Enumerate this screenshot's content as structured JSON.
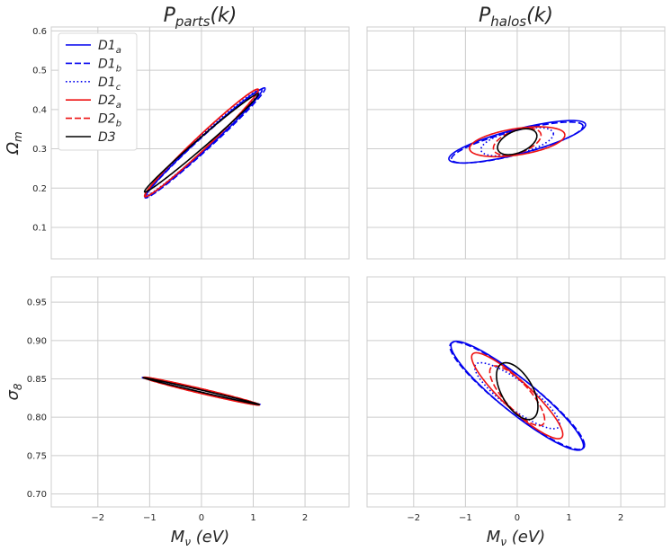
{
  "colors": {
    "D1": "#0000ee",
    "D2": "#ee1111",
    "D3": "#000000",
    "grid": "#cccccc"
  },
  "chart_data": [
    {
      "type": "scatter",
      "subtype": "confidence-ellipses",
      "panel": "top-left",
      "title": "Pparts(k)",
      "title_main": "P",
      "title_sub": "parts",
      "title_suffix": "(k)",
      "xlabel": "",
      "ylabel": "Ωm",
      "xlim": [
        -2.9,
        2.85
      ],
      "ylim": [
        0.02,
        0.61
      ],
      "xticks": [],
      "xticklabels": [],
      "yticks": [
        0.1,
        0.2,
        0.3,
        0.4,
        0.5,
        0.6
      ],
      "yticklabels": [
        "0.1",
        "0.2",
        "0.3",
        "0.4",
        "0.5",
        "0.6"
      ],
      "xgrid": [
        -2,
        -1,
        0,
        1,
        2
      ],
      "legend": {
        "position": "top-left",
        "entries": [
          {
            "label": "D1",
            "sub": "a",
            "color": "#0000ee",
            "dash": "solid"
          },
          {
            "label": "D1",
            "sub": "b",
            "color": "#0000ee",
            "dash": "dashed"
          },
          {
            "label": "D1",
            "sub": "c",
            "color": "#0000ee",
            "dash": "dotted"
          },
          {
            "label": "D2",
            "sub": "a",
            "color": "#ee1111",
            "dash": "solid"
          },
          {
            "label": "D2",
            "sub": "b",
            "color": "#ee1111",
            "dash": "dashed"
          },
          {
            "label": "D3",
            "sub": "",
            "color": "#000000",
            "dash": "solid"
          }
        ]
      },
      "series": [
        {
          "name": "D1a",
          "color": "#0000ee",
          "dash": "solid",
          "center": [
            0.05,
            0.315
          ],
          "sx": 1.12,
          "sy": 0.136,
          "rho": 0.988
        },
        {
          "name": "D1b",
          "color": "#0000ee",
          "dash": "dashed",
          "center": [
            0.07,
            0.315
          ],
          "sx": 1.16,
          "sy": 0.14,
          "rho": 0.988
        },
        {
          "name": "D1c",
          "color": "#0000ee",
          "dash": "dotted",
          "center": [
            0.02,
            0.315
          ],
          "sx": 1.1,
          "sy": 0.134,
          "rho": 0.988
        },
        {
          "name": "D2a",
          "color": "#ee1111",
          "dash": "solid",
          "center": [
            0.0,
            0.315
          ],
          "sx": 1.1,
          "sy": 0.137,
          "rho": 0.986
        },
        {
          "name": "D2b",
          "color": "#ee1111",
          "dash": "dashed",
          "center": [
            0.0,
            0.315
          ],
          "sx": 1.09,
          "sy": 0.136,
          "rho": 0.986
        },
        {
          "name": "D3",
          "color": "#000000",
          "dash": "solid",
          "center": [
            0.0,
            0.315
          ],
          "sx": 1.1,
          "sy": 0.125,
          "rho": 0.992
        }
      ]
    },
    {
      "type": "scatter",
      "subtype": "confidence-ellipses",
      "panel": "top-right",
      "title": "Phalos(k)",
      "title_main": "P",
      "title_sub": "halos",
      "title_suffix": "(k)",
      "xlabel": "",
      "ylabel": "",
      "xlim": [
        -2.9,
        2.85
      ],
      "ylim": [
        0.02,
        0.61
      ],
      "xticks": [],
      "xticklabels": [],
      "yticks": [],
      "yticklabels": [],
      "xgrid": [
        -2,
        -1,
        0,
        1,
        2
      ],
      "ygrid": [
        0.1,
        0.2,
        0.3,
        0.4,
        0.5,
        0.6
      ],
      "series": [
        {
          "name": "D1a",
          "color": "#0000ee",
          "dash": "solid",
          "center": [
            0.0,
            0.318
          ],
          "sx": 1.32,
          "sy": 0.054,
          "rho": 0.8
        },
        {
          "name": "D1b",
          "color": "#0000ee",
          "dash": "dashed",
          "center": [
            0.0,
            0.316
          ],
          "sx": 1.27,
          "sy": 0.052,
          "rho": 0.8
        },
        {
          "name": "D1c",
          "color": "#0000ee",
          "dash": "dotted",
          "center": [
            0.0,
            0.318
          ],
          "sx": 0.7,
          "sy": 0.036,
          "rho": 0.55
        },
        {
          "name": "D2a",
          "color": "#ee1111",
          "dash": "solid",
          "center": [
            0.0,
            0.318
          ],
          "sx": 0.92,
          "sy": 0.038,
          "rho": 0.45
        },
        {
          "name": "D2b",
          "color": "#ee1111",
          "dash": "dashed",
          "center": [
            0.0,
            0.318
          ],
          "sx": 0.46,
          "sy": 0.034,
          "rho": 0.48
        },
        {
          "name": "D3",
          "color": "#000000",
          "dash": "solid",
          "center": [
            0.0,
            0.318
          ],
          "sx": 0.38,
          "sy": 0.033,
          "rho": 0.45
        }
      ]
    },
    {
      "type": "scatter",
      "subtype": "confidence-ellipses",
      "panel": "bottom-left",
      "title": "",
      "xlabel": "Mν (eV)",
      "ylabel": "σ8",
      "xlim": [
        -2.9,
        2.85
      ],
      "ylim": [
        0.683,
        0.983
      ],
      "xticks": [
        -2,
        -1,
        0,
        1,
        2
      ],
      "xticklabels": [
        "−2",
        "−1",
        "0",
        "1",
        "2"
      ],
      "yticks": [
        0.7,
        0.75,
        0.8,
        0.85,
        0.9,
        0.95
      ],
      "yticklabels": [
        "0.70",
        "0.75",
        "0.80",
        "0.85",
        "0.90",
        "0.95"
      ],
      "series": [
        {
          "name": "D1a",
          "color": "#0000ee",
          "dash": "solid",
          "center": [
            0.0,
            0.834
          ],
          "sx": 1.12,
          "sy": 0.0175,
          "rho": -0.996
        },
        {
          "name": "D1b",
          "color": "#0000ee",
          "dash": "dashed",
          "center": [
            0.0,
            0.834
          ],
          "sx": 1.14,
          "sy": 0.0178,
          "rho": -0.996
        },
        {
          "name": "D1c",
          "color": "#0000ee",
          "dash": "dotted",
          "center": [
            0.0,
            0.834
          ],
          "sx": 1.1,
          "sy": 0.0172,
          "rho": -0.996
        },
        {
          "name": "D2a",
          "color": "#ee1111",
          "dash": "solid",
          "center": [
            0.0,
            0.834
          ],
          "sx": 1.12,
          "sy": 0.0182,
          "rho": -0.985
        },
        {
          "name": "D2b",
          "color": "#ee1111",
          "dash": "dashed",
          "center": [
            0.0,
            0.834
          ],
          "sx": 1.12,
          "sy": 0.018,
          "rho": -0.985
        },
        {
          "name": "D3",
          "color": "#000000",
          "dash": "solid",
          "center": [
            0.0,
            0.834
          ],
          "sx": 1.12,
          "sy": 0.0176,
          "rho": -0.997
        }
      ]
    },
    {
      "type": "scatter",
      "subtype": "confidence-ellipses",
      "panel": "bottom-right",
      "title": "",
      "xlabel": "Mν (eV)",
      "ylabel": "",
      "xlim": [
        -2.9,
        2.85
      ],
      "ylim": [
        0.683,
        0.983
      ],
      "xticks": [
        -2,
        -1,
        0,
        1,
        2
      ],
      "xticklabels": [
        "−2",
        "−1",
        "0",
        "1",
        "2"
      ],
      "yticks": [],
      "yticklabels": [],
      "ygrid": [
        0.7,
        0.75,
        0.8,
        0.85,
        0.9,
        0.95
      ],
      "series": [
        {
          "name": "D1a",
          "color": "#0000ee",
          "dash": "solid",
          "center": [
            0.0,
            0.828
          ],
          "sx": 1.28,
          "sy": 0.071,
          "rho": -0.92
        },
        {
          "name": "D1b",
          "color": "#0000ee",
          "dash": "dashed",
          "center": [
            0.0,
            0.828
          ],
          "sx": 1.3,
          "sy": 0.07,
          "rho": -0.92
        },
        {
          "name": "D1c",
          "color": "#0000ee",
          "dash": "dotted",
          "center": [
            0.0,
            0.828
          ],
          "sx": 0.82,
          "sy": 0.043,
          "rho": -0.86
        },
        {
          "name": "D2a",
          "color": "#ee1111",
          "dash": "solid",
          "center": [
            0.0,
            0.828
          ],
          "sx": 0.88,
          "sy": 0.056,
          "rho": -0.9
        },
        {
          "name": "D2b",
          "color": "#ee1111",
          "dash": "dashed",
          "center": [
            0.0,
            0.828
          ],
          "sx": 0.53,
          "sy": 0.039,
          "rho": -0.8
        },
        {
          "name": "D3",
          "color": "#000000",
          "dash": "solid",
          "center": [
            0.0,
            0.834
          ],
          "sx": 0.4,
          "sy": 0.037,
          "rho": -0.55
        }
      ]
    }
  ]
}
